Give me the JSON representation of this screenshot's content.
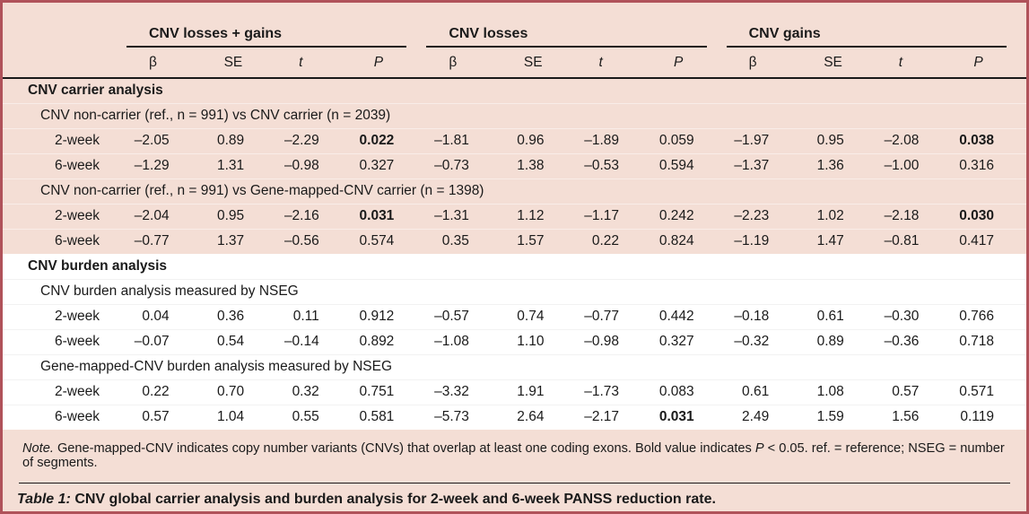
{
  "colors": {
    "card_border": "#b0525a",
    "card_background": "#f4ded5",
    "section_band_background": "#ffffff",
    "rule": "#1a1a1a",
    "text": "#1a1a1a"
  },
  "table": {
    "col_groups": [
      {
        "label": "CNV losses + gains"
      },
      {
        "label": "CNV losses"
      },
      {
        "label": "CNV gains"
      }
    ],
    "sub_headers": [
      "β",
      "SE",
      "t",
      "P"
    ],
    "sections": [
      {
        "title": "CNV carrier analysis",
        "subsections": [
          {
            "title": "CNV non-carrier (ref., n = 991) vs CNV carrier (n = 2039)",
            "rows": [
              {
                "label": "2-week",
                "values": [
                  "–2.05",
                  "0.89",
                  "–2.29",
                  "0.022",
                  "–1.81",
                  "0.96",
                  "–1.89",
                  "0.059",
                  "–1.97",
                  "0.95",
                  "–2.08",
                  "0.038"
                ]
              },
              {
                "label": "6-week",
                "values": [
                  "–1.29",
                  "1.31",
                  "–0.98",
                  "0.327",
                  "–0.73",
                  "1.38",
                  "–0.53",
                  "0.594",
                  "–1.37",
                  "1.36",
                  "–1.00",
                  "0.316"
                ]
              }
            ]
          },
          {
            "title": "CNV non-carrier (ref., n = 991) vs Gene-mapped-CNV carrier (n = 1398)",
            "rows": [
              {
                "label": "2-week",
                "values": [
                  "–2.04",
                  "0.95",
                  "–2.16",
                  "0.031",
                  "–1.31",
                  "1.12",
                  "–1.17",
                  "0.242",
                  "–2.23",
                  "1.02",
                  "–2.18",
                  "0.030"
                ]
              },
              {
                "label": "6-week",
                "values": [
                  "–0.77",
                  "1.37",
                  "–0.56",
                  "0.574",
                  "0.35",
                  "1.57",
                  "0.22",
                  "0.824",
                  "–1.19",
                  "1.47",
                  "–0.81",
                  "0.417"
                ]
              }
            ]
          }
        ]
      },
      {
        "title": "CNV burden analysis",
        "subsections": [
          {
            "title": "CNV burden analysis measured by NSEG",
            "rows": [
              {
                "label": "2-week",
                "values": [
                  "0.04",
                  "0.36",
                  "0.11",
                  "0.912",
                  "–0.57",
                  "0.74",
                  "–0.77",
                  "0.442",
                  "–0.18",
                  "0.61",
                  "–0.30",
                  "0.766"
                ]
              },
              {
                "label": "6-week",
                "values": [
                  "–0.07",
                  "0.54",
                  "–0.14",
                  "0.892",
                  "–1.08",
                  "1.10",
                  "–0.98",
                  "0.327",
                  "–0.32",
                  "0.89",
                  "–0.36",
                  "0.718"
                ]
              }
            ]
          },
          {
            "title": "Gene-mapped-CNV burden analysis measured by NSEG",
            "rows": [
              {
                "label": "2-week",
                "values": [
                  "0.22",
                  "0.70",
                  "0.32",
                  "0.751",
                  "–3.32",
                  "1.91",
                  "–1.73",
                  "0.083",
                  "0.61",
                  "1.08",
                  "0.57",
                  "0.571"
                ]
              },
              {
                "label": "6-week",
                "values": [
                  "0.57",
                  "1.04",
                  "0.55",
                  "0.581",
                  "–5.73",
                  "2.64",
                  "–2.17",
                  "0.031",
                  "2.49",
                  "1.59",
                  "1.56",
                  "0.119"
                ]
              }
            ]
          }
        ]
      }
    ]
  },
  "note": {
    "prefix": "Note.",
    "body1": " Gene-mapped-CNV indicates copy number variants (CNVs) that overlap at least one coding exons. Bold value indicates ",
    "p_symbol": "P",
    "body2": " < 0.05. ref. = reference; NSEG = number of segments."
  },
  "caption": {
    "label": "Table 1:",
    "text": " CNV global carrier analysis and burden analysis for 2-week and 6-week PANSS reduction rate."
  }
}
